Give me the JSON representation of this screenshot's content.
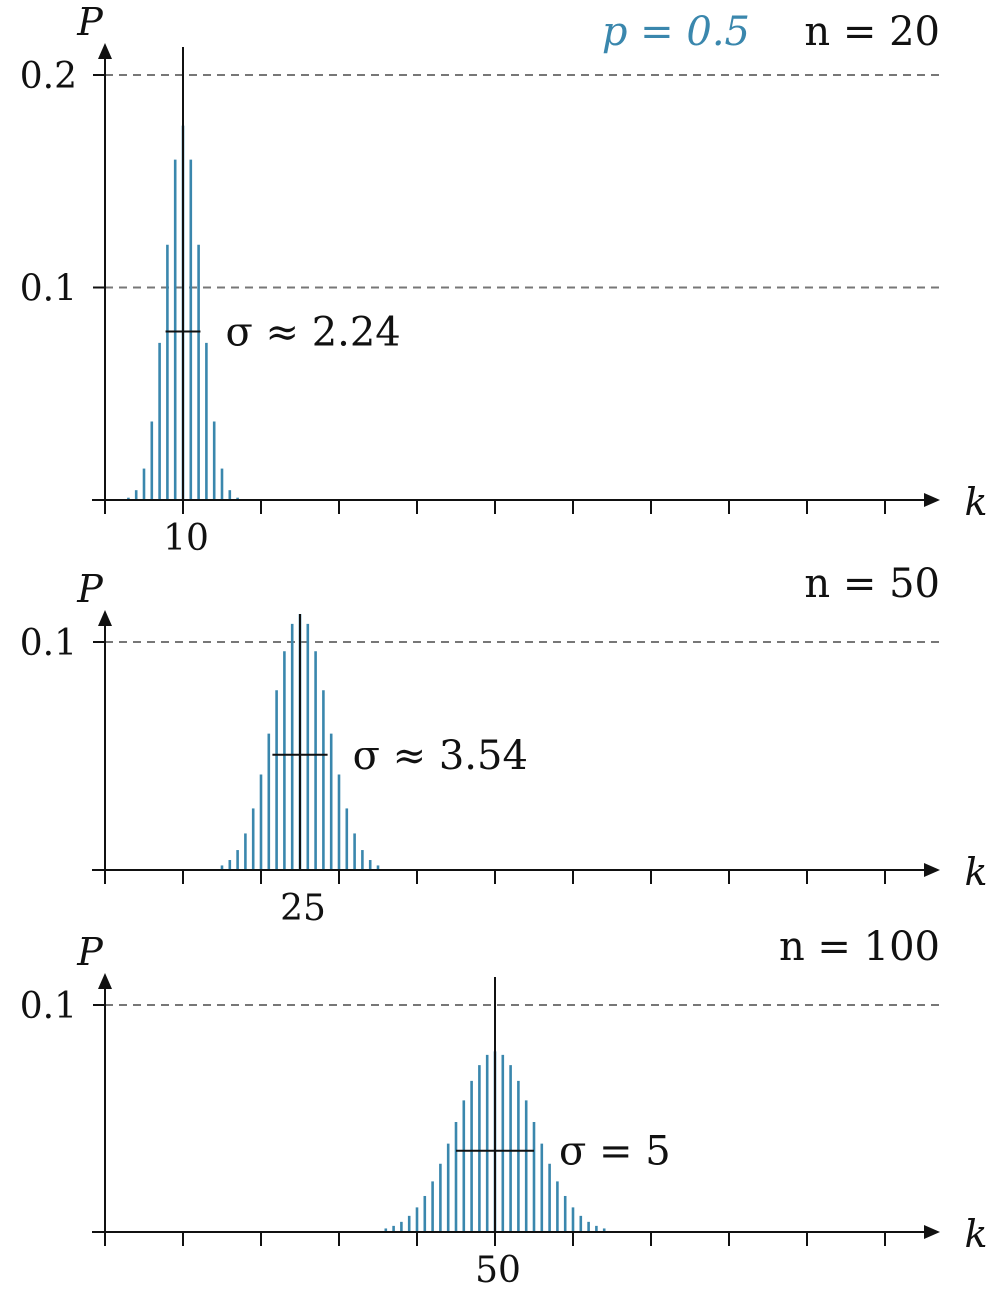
{
  "colors": {
    "bars": "#3a87ad",
    "axis": "#111111",
    "grid": "#777777",
    "param": "#3a87ad"
  },
  "header": {
    "p_label": "p = 0.5"
  },
  "chart_data": [
    {
      "type": "bar",
      "n": 20,
      "p": 0.5,
      "n_label": "n = 20",
      "sigma_label": "σ ≈ 2.24",
      "sigma": 2.236,
      "xlabel": "k",
      "ylabel": "P",
      "xlim": [
        -0.5,
        107
      ],
      "ylim": [
        0,
        0.21
      ],
      "x_tick_step": 10,
      "x_tick_labels": [
        {
          "x": 10,
          "text": "10"
        }
      ],
      "y_ticks": [
        {
          "y": 0.1,
          "text": "0.1"
        },
        {
          "y": 0.2,
          "text": "0.2"
        }
      ],
      "grid": "dashed horizontal at y ticks",
      "mean": 10
    },
    {
      "type": "bar",
      "n": 50,
      "p": 0.5,
      "n_label": "n = 50",
      "sigma_label": "σ ≈ 3.54",
      "sigma": 3.536,
      "xlabel": "k",
      "ylabel": "P",
      "xlim": [
        -0.5,
        107
      ],
      "ylim": [
        0,
        0.115
      ],
      "x_tick_step": 10,
      "x_tick_labels": [
        {
          "x": 25,
          "text": "25"
        }
      ],
      "y_ticks": [
        {
          "y": 0.1,
          "text": "0.1"
        }
      ],
      "grid": "dashed horizontal at y ticks",
      "mean": 25
    },
    {
      "type": "bar",
      "n": 100,
      "p": 0.5,
      "n_label": "n = 100",
      "sigma_label": "σ = 5",
      "sigma": 5,
      "xlabel": "k",
      "ylabel": "P",
      "xlim": [
        -0.5,
        107
      ],
      "ylim": [
        0,
        0.115
      ],
      "x_tick_step": 10,
      "x_tick_labels": [
        {
          "x": 50,
          "text": "50"
        }
      ],
      "y_ticks": [
        {
          "y": 0.1,
          "text": "0.1"
        }
      ],
      "grid": "dashed horizontal at y ticks",
      "mean": 50
    }
  ]
}
